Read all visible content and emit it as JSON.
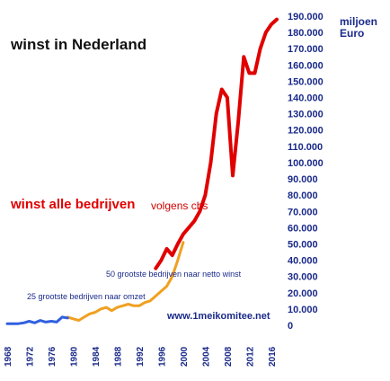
{
  "chart_data": {
    "type": "line",
    "title": "winst in Nederland",
    "unit_label_line1": "miljoen",
    "unit_label_line2": "Euro",
    "series_label_main": "winst alle bedrijven",
    "series_label_source": "volgens   cbs",
    "annotation_top50": "50 grootste bedrijven naar netto winst",
    "annotation_top25": "25 grootste bedrijven naar omzet",
    "source_url": "www.1meikomitee.net",
    "x_ticks": [
      "1968",
      "1972",
      "1976",
      "1980",
      "1984",
      "1988",
      "1992",
      "1996",
      "2000",
      "2004",
      "2008",
      "2012",
      "2016"
    ],
    "y_ticks": [
      "0",
      "10.000",
      "20.000",
      "30.000",
      "40.000",
      "50.000",
      "60.000",
      "70.000",
      "80.000",
      "90.000",
      "100.000",
      "110.000",
      "120.000",
      "130.000",
      "140.000",
      "150.000",
      "160.000",
      "170.000",
      "180.000",
      "190.000"
    ],
    "xlim": [
      1968,
      2017
    ],
    "ylim": [
      0,
      190000
    ],
    "series": [
      {
        "name": "winst alle bedrijven",
        "color": "#e00000",
        "x": [
          1995,
          1996,
          1997,
          1998,
          1999,
          2000,
          2001,
          2002,
          2003,
          2004,
          2005,
          2006,
          2007,
          2008,
          2009,
          2010,
          2011,
          2012,
          2013,
          2014,
          2015,
          2016,
          2017
        ],
        "y": [
          35000,
          40000,
          47000,
          43000,
          50000,
          56000,
          60000,
          64000,
          70000,
          80000,
          100000,
          130000,
          145000,
          140000,
          92000,
          125000,
          165000,
          155000,
          155000,
          170000,
          180000,
          185000,
          188000
        ]
      },
      {
        "name": "50 grootste bedrijven naar netto winst",
        "color": "#f0a020",
        "x": [
          1979,
          1980,
          1981,
          1982,
          1983,
          1984,
          1985,
          1986,
          1987,
          1988,
          1989,
          1990,
          1991,
          1992,
          1993,
          1994,
          1995,
          1996,
          1997,
          1998,
          1999,
          2000
        ],
        "y": [
          5000,
          4000,
          3000,
          5000,
          7000,
          8000,
          10000,
          11000,
          9000,
          11000,
          12000,
          13000,
          12000,
          12000,
          14000,
          15000,
          18000,
          21000,
          24000,
          30000,
          40000,
          51000
        ]
      },
      {
        "name": "25 grootste bedrijven naar omzet",
        "color": "#3060e0",
        "x": [
          1968,
          1969,
          1970,
          1971,
          1972,
          1973,
          1974,
          1975,
          1976,
          1977,
          1978,
          1979
        ],
        "y": [
          1000,
          1000,
          1000,
          1500,
          2500,
          1500,
          3000,
          2000,
          2500,
          2000,
          5000,
          4500
        ]
      }
    ]
  }
}
